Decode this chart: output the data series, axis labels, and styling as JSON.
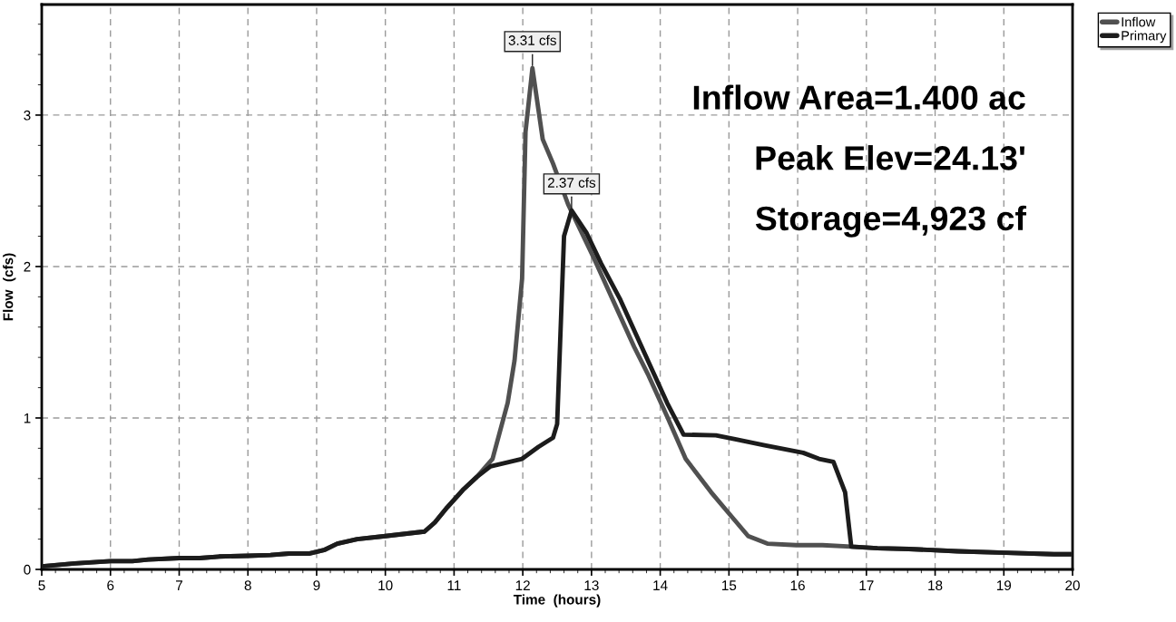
{
  "chart_data": {
    "type": "line",
    "xlabel": "Time  (hours)",
    "ylabel": "Flow  (cfs)",
    "xlim": [
      5,
      20
    ],
    "ylim": [
      0,
      3.73
    ],
    "xticks": [
      5,
      6,
      7,
      8,
      9,
      10,
      11,
      12,
      13,
      14,
      15,
      16,
      17,
      18,
      19,
      20
    ],
    "yticks": [
      0,
      1,
      2,
      3
    ],
    "grid": true,
    "legend": "top right",
    "line_style": "solid",
    "marker": "none",
    "series": [
      {
        "name": "Inflow",
        "color": "#505050",
        "x": [
          5,
          5.48,
          6,
          6.32,
          6.55,
          7,
          7.3,
          7.58,
          8,
          8.33,
          8.6,
          8.9,
          9.12,
          9.3,
          9.59,
          10,
          10.57,
          10.72,
          10.9,
          11.14,
          11.33,
          11.56,
          11.78,
          11.88,
          11.99,
          12.04,
          12.14,
          12.29,
          12.44,
          12.66,
          13.03,
          13.35,
          13.62,
          13.83,
          14.1,
          14.37,
          14.74,
          15.0,
          15.28,
          15.56,
          15.98,
          16.36,
          16.78,
          17.16,
          17.62,
          18.33,
          19.03,
          19.73,
          20
        ],
        "values": [
          0.02,
          0.04,
          0.055,
          0.055,
          0.065,
          0.075,
          0.075,
          0.085,
          0.09,
          0.095,
          0.105,
          0.105,
          0.13,
          0.17,
          0.2,
          0.22,
          0.25,
          0.31,
          0.41,
          0.53,
          0.61,
          0.73,
          1.1,
          1.38,
          1.92,
          2.89,
          3.31,
          2.84,
          2.68,
          2.41,
          2.06,
          1.74,
          1.47,
          1.28,
          1.01,
          0.73,
          0.51,
          0.37,
          0.22,
          0.17,
          0.16,
          0.16,
          0.15,
          0.14,
          0.135,
          0.12,
          0.11,
          0.1,
          0.1
        ]
      },
      {
        "name": "Primary",
        "color": "#1c1c1c",
        "x": [
          5,
          5.48,
          6,
          6.32,
          6.55,
          7,
          7.3,
          7.58,
          8,
          8.33,
          8.6,
          8.9,
          9.12,
          9.3,
          9.59,
          10,
          10.57,
          10.72,
          10.9,
          11.14,
          11.33,
          11.53,
          11.99,
          12.23,
          12.44,
          12.5,
          12.6,
          12.71,
          12.93,
          13.14,
          13.41,
          13.67,
          13.89,
          14.1,
          14.34,
          14.81,
          15.09,
          15.52,
          16.08,
          16.31,
          16.52,
          16.69,
          16.78,
          17.16,
          17.62,
          18.33,
          19.03,
          19.73,
          20
        ],
        "values": [
          0.02,
          0.04,
          0.055,
          0.055,
          0.065,
          0.075,
          0.075,
          0.085,
          0.09,
          0.095,
          0.105,
          0.105,
          0.13,
          0.17,
          0.2,
          0.22,
          0.25,
          0.31,
          0.41,
          0.53,
          0.61,
          0.68,
          0.73,
          0.81,
          0.87,
          0.96,
          2.2,
          2.37,
          2.22,
          2.02,
          1.79,
          1.53,
          1.31,
          1.1,
          0.89,
          0.885,
          0.86,
          0.82,
          0.77,
          0.73,
          0.71,
          0.51,
          0.15,
          0.14,
          0.135,
          0.12,
          0.11,
          0.1,
          0.1
        ]
      }
    ],
    "annotations": [
      {
        "text": "3.31 cfs",
        "x": 12.14,
        "y": 3.31
      },
      {
        "text": "2.37 cfs",
        "x": 12.71,
        "y": 2.37
      },
      "Inflow Area=1.400 ac",
      "Peak Elev=24.13'",
      "Storage=4,923 cf"
    ]
  }
}
